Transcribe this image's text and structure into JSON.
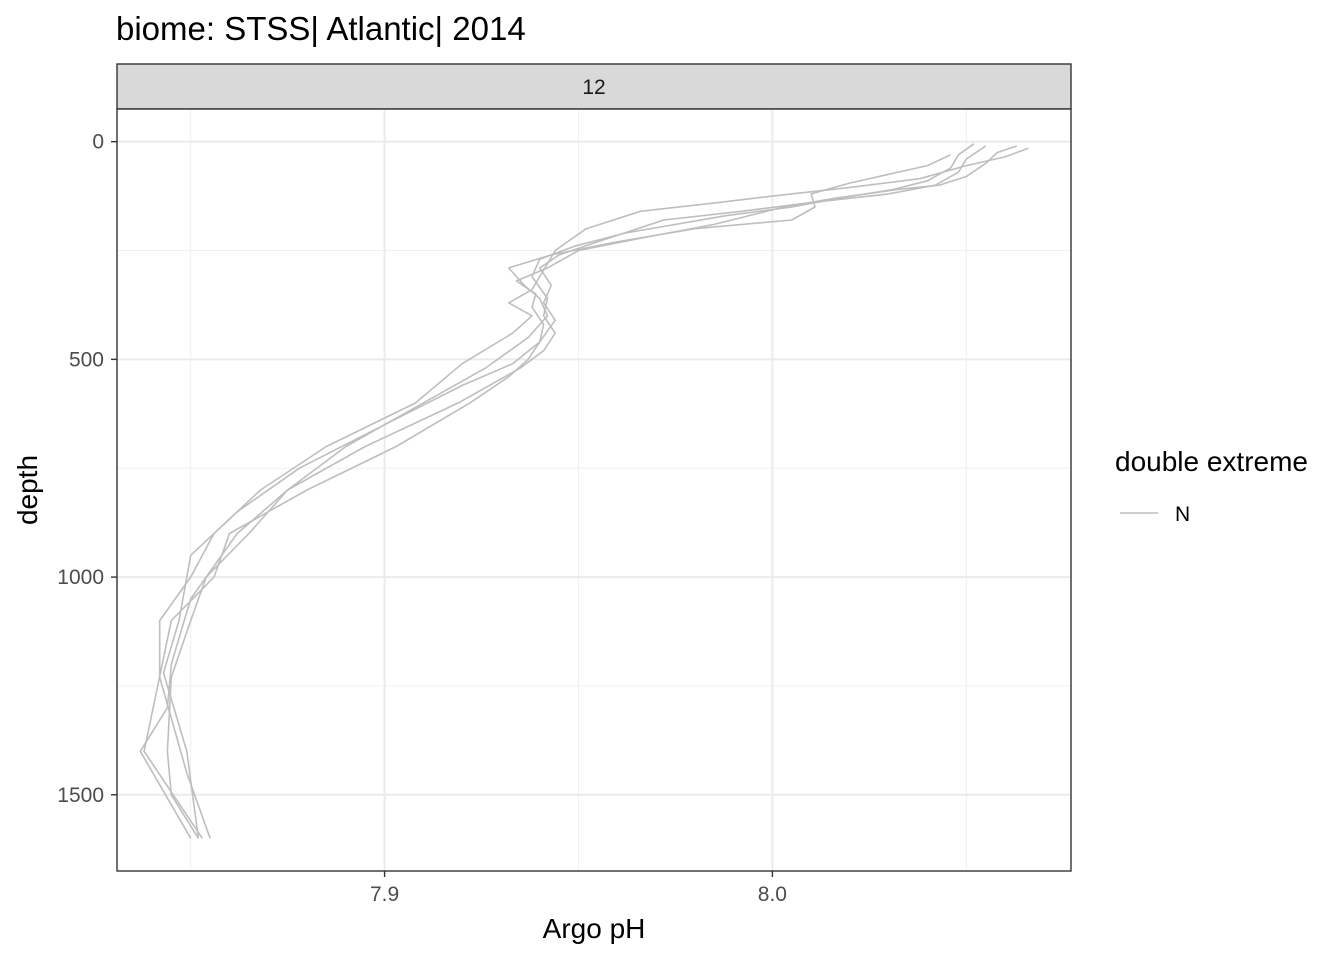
{
  "chart_data": {
    "type": "line",
    "title": "biome: STSS| Atlantic| 2014",
    "facet_label": "12",
    "xlabel": "Argo pH",
    "ylabel": "depth",
    "xlim": [
      7.831,
      8.077
    ],
    "ylim": [
      -75,
      1675
    ],
    "y_reversed": true,
    "x_ticks": [
      7.9,
      8.0
    ],
    "x_tick_labels": [
      "7.9",
      "8.0"
    ],
    "y_ticks": [
      0,
      500,
      1000,
      1500
    ],
    "y_tick_labels": [
      "0",
      "500",
      "1000",
      "1500"
    ],
    "grid": true,
    "line_color": "#bebebe",
    "legend": {
      "title": "double extreme",
      "position": "right",
      "entries": [
        "N"
      ]
    },
    "series": [
      {
        "x": [
          8.052,
          8.048,
          8.046,
          8.04,
          8.031,
          8.017,
          8.005,
          7.988,
          7.962,
          7.949,
          7.94,
          7.938,
          7.942,
          7.941,
          7.944,
          7.941,
          7.935,
          7.919,
          7.895,
          7.875,
          7.865,
          7.854,
          7.85,
          7.845,
          7.844,
          7.845,
          7.852
        ],
        "y": [
          5,
          30,
          60,
          90,
          110,
          130,
          150,
          170,
          210,
          240,
          270,
          310,
          360,
          400,
          440,
          480,
          520,
          600,
          700,
          800,
          900,
          1000,
          1100,
          1230,
          1400,
          1500,
          1600
        ]
      },
      {
        "x": [
          8.055,
          8.05,
          8.048,
          8.042,
          8.03,
          8.01,
          7.992,
          7.972,
          7.955,
          7.945,
          7.94,
          7.943,
          7.941,
          7.944,
          7.94,
          7.933,
          7.92,
          7.9,
          7.878,
          7.862,
          7.85,
          7.847,
          7.843,
          7.849,
          7.852
        ],
        "y": [
          10,
          40,
          70,
          100,
          120,
          140,
          160,
          180,
          230,
          260,
          290,
          330,
          370,
          410,
          460,
          510,
          560,
          650,
          750,
          850,
          950,
          1100,
          1220,
          1400,
          1600
        ]
      },
      {
        "x": [
          8.063,
          8.058,
          8.055,
          8.05,
          8.043,
          8.032,
          8.016,
          8.003,
          7.985,
          7.967,
          7.95,
          7.942,
          7.934,
          7.939,
          7.938,
          7.941,
          7.94,
          7.937,
          7.932,
          7.922,
          7.903,
          7.88,
          7.86,
          7.856,
          7.845,
          7.838,
          7.853
        ],
        "y": [
          10,
          25,
          50,
          80,
          100,
          110,
          130,
          150,
          190,
          220,
          250,
          290,
          320,
          350,
          380,
          420,
          460,
          500,
          540,
          600,
          700,
          800,
          900,
          1000,
          1100,
          1400,
          1600
        ]
      },
      {
        "x": [
          8.066,
          8.06,
          8.05,
          8.038,
          8.02,
          8.0,
          7.986,
          7.966,
          7.952,
          7.944,
          7.942,
          7.94,
          7.938,
          7.932,
          7.938,
          7.933,
          7.92,
          7.908,
          7.885,
          7.868,
          7.856,
          7.85,
          7.842,
          7.842,
          7.849,
          7.855
        ],
        "y": [
          15,
          35,
          55,
          85,
          105,
          125,
          140,
          160,
          200,
          250,
          280,
          310,
          340,
          370,
          400,
          440,
          510,
          600,
          700,
          800,
          900,
          1000,
          1100,
          1230,
          1450,
          1600
        ]
      },
      {
        "x": [
          8.046,
          8.04,
          8.03,
          8.02,
          8.01,
          8.011,
          8.005,
          7.98,
          7.96,
          7.943,
          7.932,
          7.936,
          7.94,
          7.942,
          7.937,
          7.926,
          7.91,
          7.89,
          7.875,
          7.862,
          7.85,
          7.845,
          7.844,
          7.837,
          7.85
        ],
        "y": [
          30,
          55,
          75,
          95,
          120,
          150,
          180,
          200,
          230,
          260,
          290,
          330,
          360,
          400,
          450,
          520,
          600,
          700,
          800,
          900,
          1050,
          1200,
          1300,
          1400,
          1600
        ]
      }
    ]
  }
}
